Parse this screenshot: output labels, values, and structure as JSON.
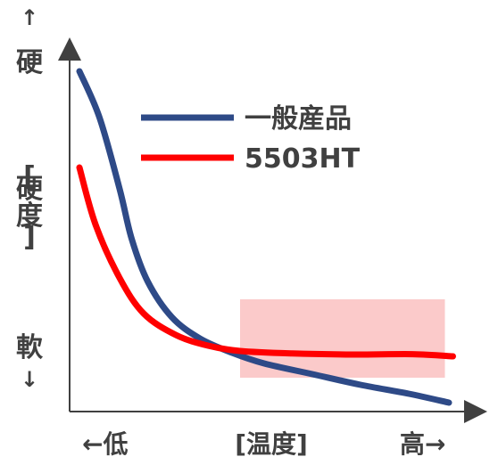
{
  "chart_data": {
    "type": "line",
    "title": "",
    "xlabel": "[温度]",
    "ylabel": "[硬度]",
    "x_axis": {
      "low_label": "←低",
      "high_label": "高→"
    },
    "y_axis": {
      "top_char": "硬",
      "top_arrow": "↑",
      "bottom_char": "軟",
      "bottom_arrow": "↓",
      "label_chars": [
        "[",
        "硬",
        "度",
        "]"
      ]
    },
    "xlim": [
      0,
      100
    ],
    "ylim": [
      0,
      100
    ],
    "highlight_region": {
      "x": [
        42,
        93
      ],
      "y": [
        9,
        31
      ],
      "color": "#fbcaca"
    },
    "legend_position": "upper-right",
    "series": [
      {
        "name": "一般産品",
        "color": "#2e4a87",
        "x": [
          2,
          7,
          12,
          15,
          19,
          25,
          32,
          40,
          48,
          60,
          72,
          84,
          94
        ],
        "y": [
          95,
          82,
          62,
          48,
          36,
          26,
          20,
          16,
          13,
          10,
          7,
          4.5,
          2
        ]
      },
      {
        "name": "5503HT",
        "color": "#ff0000",
        "x": [
          2,
          6,
          12,
          18,
          26,
          34,
          42,
          55,
          70,
          85,
          95
        ],
        "y": [
          68,
          52,
          37,
          27,
          21,
          18,
          16.5,
          15.8,
          15.5,
          15.6,
          15
        ]
      }
    ]
  }
}
